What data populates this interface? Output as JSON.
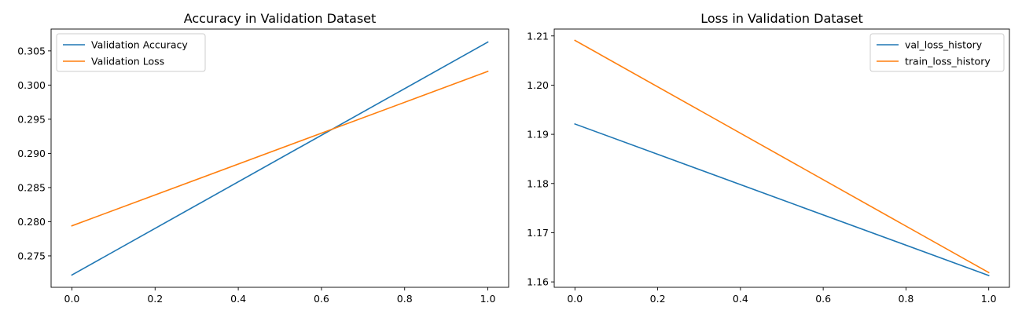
{
  "chart_data": [
    {
      "type": "line",
      "title": "Accuracy in Validation Dataset",
      "xlabel": "",
      "ylabel": "",
      "xlim": [
        -0.05,
        1.05
      ],
      "ylim": [
        0.2704,
        0.3082
      ],
      "x_ticks": [
        0.0,
        0.2,
        0.4,
        0.6,
        0.8,
        1.0
      ],
      "x_tick_labels": [
        "0.0",
        "0.2",
        "0.4",
        "0.6",
        "0.8",
        "1.0"
      ],
      "y_ticks": [
        0.275,
        0.28,
        0.285,
        0.29,
        0.295,
        0.3,
        0.305
      ],
      "y_tick_labels": [
        "0.275",
        "0.280",
        "0.285",
        "0.290",
        "0.295",
        "0.300",
        "0.305"
      ],
      "grid": false,
      "legend_position": "top-left",
      "series": [
        {
          "name": "Validation Accuracy",
          "color": "#1f77b4",
          "x": [
            0,
            1
          ],
          "y": [
            0.2722,
            0.3063
          ]
        },
        {
          "name": "Validation Loss",
          "color": "#ff7f0e",
          "x": [
            0,
            1
          ],
          "y": [
            0.2794,
            0.302
          ]
        }
      ]
    },
    {
      "type": "line",
      "title": "Loss in Validation Dataset",
      "xlabel": "",
      "ylabel": "",
      "xlim": [
        -0.05,
        1.05
      ],
      "ylim": [
        1.1589,
        1.2114
      ],
      "x_ticks": [
        0.0,
        0.2,
        0.4,
        0.6,
        0.8,
        1.0
      ],
      "x_tick_labels": [
        "0.0",
        "0.2",
        "0.4",
        "0.6",
        "0.8",
        "1.0"
      ],
      "y_ticks": [
        1.16,
        1.17,
        1.18,
        1.19,
        1.2,
        1.21
      ],
      "y_tick_labels": [
        "1.16",
        "1.17",
        "1.18",
        "1.19",
        "1.20",
        "1.21"
      ],
      "grid": false,
      "legend_position": "top-right",
      "series": [
        {
          "name": "val_loss_history",
          "color": "#1f77b4",
          "x": [
            0,
            1
          ],
          "y": [
            1.1921,
            1.1613
          ]
        },
        {
          "name": "train_loss_history",
          "color": "#ff7f0e",
          "x": [
            0,
            1
          ],
          "y": [
            1.2091,
            1.1619
          ]
        }
      ]
    }
  ]
}
